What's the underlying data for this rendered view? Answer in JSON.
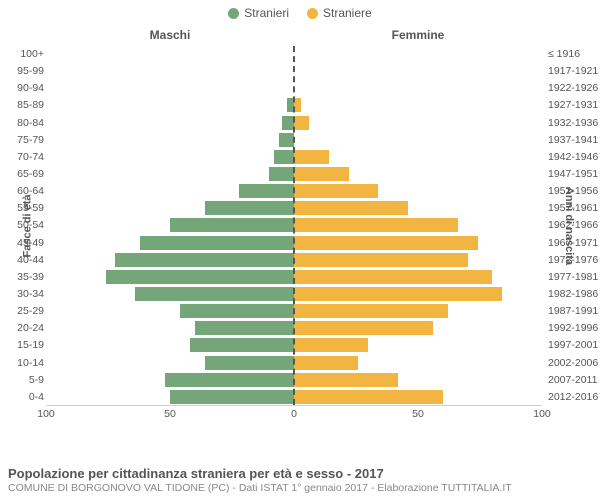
{
  "legend": {
    "male": {
      "label": "Stranieri",
      "color": "#74a67a"
    },
    "female": {
      "label": "Straniere",
      "color": "#f2b542"
    }
  },
  "headers": {
    "left": "Maschi",
    "right": "Femmine"
  },
  "axis_titles": {
    "left": "Fasce di età",
    "right": "Anni di nascita"
  },
  "chart": {
    "type": "population-pyramid",
    "xmax": 100,
    "xticks_left": [
      100,
      50,
      0
    ],
    "xticks_right": [
      50,
      100
    ],
    "bar_color_left": "#74a67a",
    "bar_color_right": "#f2b542",
    "background": "#ffffff",
    "rows": [
      {
        "age": "100+",
        "year": "≤ 1916",
        "m": 0,
        "f": 0
      },
      {
        "age": "95-99",
        "year": "1917-1921",
        "m": 0,
        "f": 0
      },
      {
        "age": "90-94",
        "year": "1922-1926",
        "m": 0,
        "f": 0
      },
      {
        "age": "85-89",
        "year": "1927-1931",
        "m": 3,
        "f": 3
      },
      {
        "age": "80-84",
        "year": "1932-1936",
        "m": 5,
        "f": 6
      },
      {
        "age": "75-79",
        "year": "1937-1941",
        "m": 6,
        "f": 0
      },
      {
        "age": "70-74",
        "year": "1942-1946",
        "m": 8,
        "f": 14
      },
      {
        "age": "65-69",
        "year": "1947-1951",
        "m": 10,
        "f": 22
      },
      {
        "age": "60-64",
        "year": "1952-1956",
        "m": 22,
        "f": 34
      },
      {
        "age": "55-59",
        "year": "1957-1961",
        "m": 36,
        "f": 46
      },
      {
        "age": "50-54",
        "year": "1962-1966",
        "m": 50,
        "f": 66
      },
      {
        "age": "45-49",
        "year": "1967-1971",
        "m": 62,
        "f": 74
      },
      {
        "age": "40-44",
        "year": "1972-1976",
        "m": 72,
        "f": 70
      },
      {
        "age": "35-39",
        "year": "1977-1981",
        "m": 76,
        "f": 80
      },
      {
        "age": "30-34",
        "year": "1982-1986",
        "m": 64,
        "f": 84
      },
      {
        "age": "25-29",
        "year": "1987-1991",
        "m": 46,
        "f": 62
      },
      {
        "age": "20-24",
        "year": "1992-1996",
        "m": 40,
        "f": 56
      },
      {
        "age": "15-19",
        "year": "1997-2001",
        "m": 42,
        "f": 30
      },
      {
        "age": "10-14",
        "year": "2002-2006",
        "m": 36,
        "f": 26
      },
      {
        "age": "5-9",
        "year": "2007-2011",
        "m": 52,
        "f": 42
      },
      {
        "age": "0-4",
        "year": "2012-2016",
        "m": 50,
        "f": 60
      }
    ]
  },
  "footer": {
    "title": "Popolazione per cittadinanza straniera per età e sesso - 2017",
    "subtitle": "COMUNE DI BORGONOVO VAL TIDONE (PC) - Dati ISTAT 1° gennaio 2017 - Elaborazione TUTTITALIA.IT"
  }
}
